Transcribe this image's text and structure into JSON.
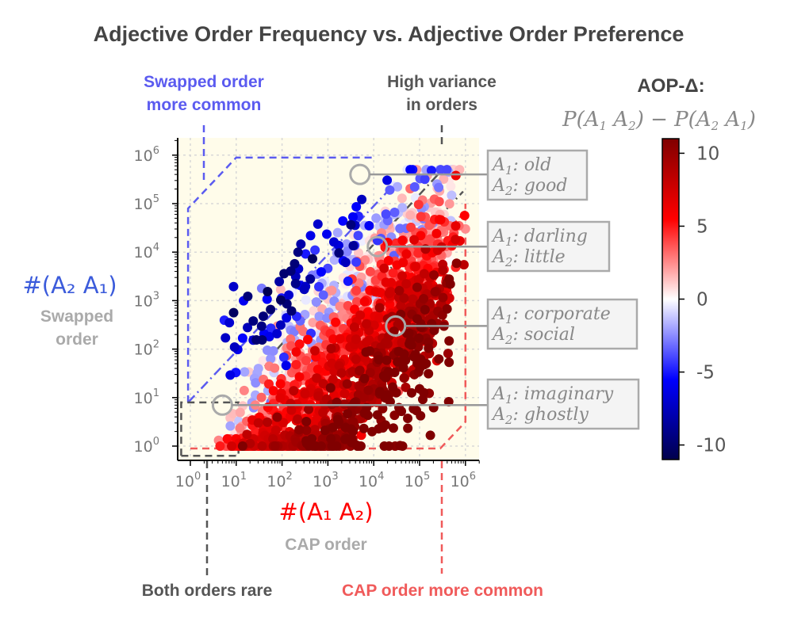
{
  "chart_data": {
    "type": "scatter",
    "title": "Adjective Order Frequency vs. Adjective Order Preference",
    "xlabel": "#(A₁ A₂)",
    "xlabel_sub": "CAP order",
    "ylabel": "#(A₂ A₁)",
    "ylabel_sub": [
      "Swapped",
      "order"
    ],
    "x_scale": "log",
    "y_scale": "log",
    "xlim": [
      0.5,
      2000000
    ],
    "ylim": [
      0.5,
      2000000
    ],
    "x_ticks": [
      {
        "value": 1,
        "base": "10",
        "exp": "0"
      },
      {
        "value": 10,
        "base": "10",
        "exp": "1"
      },
      {
        "value": 100,
        "base": "10",
        "exp": "2"
      },
      {
        "value": 1000,
        "base": "10",
        "exp": "3"
      },
      {
        "value": 10000,
        "base": "10",
        "exp": "4"
      },
      {
        "value": 100000,
        "base": "10",
        "exp": "5"
      },
      {
        "value": 1000000,
        "base": "10",
        "exp": "6"
      }
    ],
    "y_ticks": [
      {
        "value": 1,
        "base": "10",
        "exp": "0"
      },
      {
        "value": 10,
        "base": "10",
        "exp": "1"
      },
      {
        "value": 100,
        "base": "10",
        "exp": "2"
      },
      {
        "value": 1000,
        "base": "10",
        "exp": "3"
      },
      {
        "value": 10000,
        "base": "10",
        "exp": "4"
      },
      {
        "value": 100000,
        "base": "10",
        "exp": "5"
      },
      {
        "value": 1000000,
        "base": "10",
        "exp": "6"
      }
    ],
    "grid": true,
    "colorbar": {
      "title": "AOP-Δ:",
      "subtitle": "P(A₁ A₂) − P(A₂ A₁)",
      "colormap": "seismic",
      "range": [
        -11,
        11
      ],
      "ticks": [
        {
          "value": 10,
          "label": "10"
        },
        {
          "value": 5,
          "label": "5"
        },
        {
          "value": 0,
          "label": "0"
        },
        {
          "value": -5,
          "label": "-5"
        },
        {
          "value": -10,
          "label": "-10"
        }
      ]
    },
    "regions": [
      {
        "name": "swapped-more-common",
        "label": [
          "Swapped order",
          "more common"
        ],
        "color": "#5b5bf0"
      },
      {
        "name": "high-variance",
        "label": [
          "High variance",
          "in orders"
        ],
        "color": "#555555"
      },
      {
        "name": "both-rare",
        "label": [
          "Both orders rare"
        ],
        "color": "#555555"
      },
      {
        "name": "cap-more-common",
        "label": [
          "CAP order more common"
        ],
        "color": "#f05a5a"
      }
    ],
    "annotations": [
      {
        "a1": "old",
        "a2": "good",
        "x": 5000,
        "y": 400000
      },
      {
        "a1": "darling",
        "a2": "little",
        "x": 12000,
        "y": 13000
      },
      {
        "a1": "corporate",
        "a2": "social",
        "x": 30000,
        "y": 300
      },
      {
        "a1": "imaginary",
        "a2": "ghostly",
        "x": 5,
        "y": 7
      }
    ],
    "points_note": "approx. 2000 adjective pairs; x = count of CAP order, y = count of swapped order, colour = AOP-Δ"
  },
  "labels": {
    "a1_prefix": "A",
    "a2_prefix": "A",
    "sub1": "1",
    "sub2": "2",
    "colon": ":"
  }
}
